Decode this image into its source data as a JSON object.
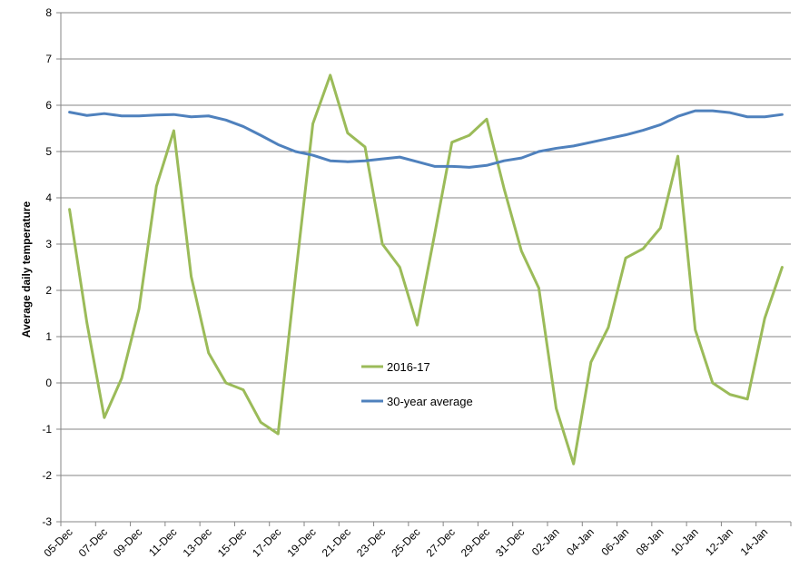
{
  "chart_data": {
    "type": "line",
    "title": "",
    "xlabel": "",
    "ylabel": "Average daily temperature",
    "ylim": [
      -3,
      8
    ],
    "y_ticks": [
      -3,
      -2,
      -1,
      0,
      1,
      2,
      3,
      4,
      5,
      6,
      7,
      8
    ],
    "grid": "horizontal",
    "legend_position": "center",
    "x_categories": [
      "05-Dec",
      "06-Dec",
      "07-Dec",
      "08-Dec",
      "09-Dec",
      "10-Dec",
      "11-Dec",
      "12-Dec",
      "13-Dec",
      "14-Dec",
      "15-Dec",
      "16-Dec",
      "17-Dec",
      "18-Dec",
      "19-Dec",
      "20-Dec",
      "21-Dec",
      "22-Dec",
      "23-Dec",
      "24-Dec",
      "25-Dec",
      "26-Dec",
      "27-Dec",
      "28-Dec",
      "29-Dec",
      "30-Dec",
      "31-Dec",
      "01-Jan",
      "02-Jan",
      "03-Jan",
      "04-Jan",
      "05-Jan",
      "06-Jan",
      "07-Jan",
      "08-Jan",
      "09-Jan",
      "10-Jan",
      "11-Jan",
      "12-Jan",
      "13-Jan",
      "14-Jan",
      "15-Jan"
    ],
    "x_tick_labels": [
      "05-Dec",
      "07-Dec",
      "09-Dec",
      "11-Dec",
      "13-Dec",
      "15-Dec",
      "17-Dec",
      "19-Dec",
      "21-Dec",
      "23-Dec",
      "25-Dec",
      "27-Dec",
      "29-Dec",
      "31-Dec",
      "02-Jan",
      "04-Jan",
      "06-Jan",
      "08-Jan",
      "10-Jan",
      "12-Jan",
      "14-Jan"
    ],
    "series": [
      {
        "name": "2016-17",
        "color": "#9bbb59",
        "values": [
          3.75,
          1.3,
          -0.75,
          0.1,
          1.6,
          4.25,
          5.45,
          2.3,
          0.65,
          0.0,
          -0.15,
          -0.85,
          -1.1,
          2.3,
          5.6,
          6.65,
          5.4,
          5.1,
          3.0,
          2.5,
          1.25,
          3.2,
          5.2,
          5.35,
          5.7,
          4.2,
          2.85,
          2.05,
          -0.55,
          -1.75,
          0.45,
          1.2,
          2.7,
          2.9,
          3.35,
          4.9,
          1.15,
          0.0,
          -0.25,
          -0.35,
          1.4,
          2.5
        ]
      },
      {
        "name": "30-year average",
        "color": "#4f81bd",
        "values": [
          5.85,
          5.78,
          5.82,
          5.77,
          5.77,
          5.79,
          5.8,
          5.75,
          5.77,
          5.68,
          5.54,
          5.35,
          5.15,
          5.0,
          4.92,
          4.8,
          4.78,
          4.8,
          4.84,
          4.88,
          4.78,
          4.68,
          4.68,
          4.66,
          4.7,
          4.8,
          4.86,
          5.0,
          5.07,
          5.12,
          5.2,
          5.28,
          5.36,
          5.46,
          5.58,
          5.76,
          5.88,
          5.88,
          5.84,
          5.75,
          5.75,
          5.8
        ]
      }
    ]
  }
}
